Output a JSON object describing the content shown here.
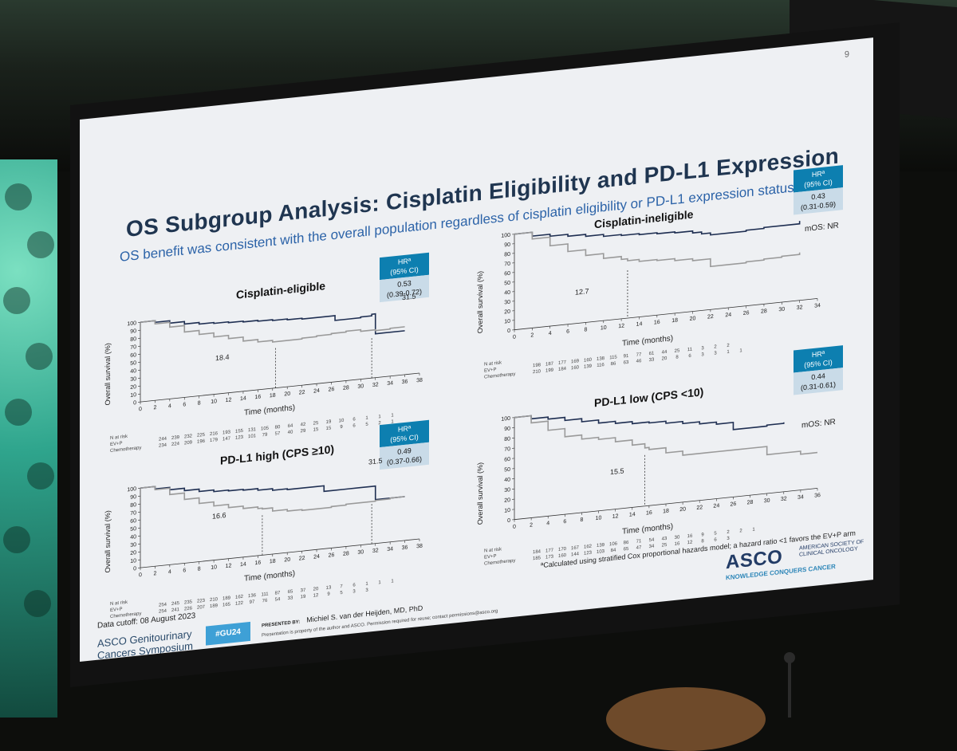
{
  "slide": {
    "number": "9",
    "title": "OS Subgroup Analysis: Cisplatin Eligibility and PD-L1 Expression",
    "subtitle": "OS benefit was consistent with the overall population regardless of cisplatin eligibility or PD-L1 expression status",
    "data_cutoff": "Data cutoff: 08 August 2023",
    "footnote": "ªCalculated using stratified Cox proportional hazards model; a hazard ratio <1 favors the EV+P arm"
  },
  "footer": {
    "symposium_line1": "ASCO Genitourinary",
    "symposium_line2": "Cancers Symposium",
    "hashtag": "#GU24",
    "presented_by_label": "PRESENTED BY:",
    "presenter": "Michiel S. van der Heijden, MD, PhD",
    "property_note": "Presentation is property of the author and ASCO. Permission required for reuse; contact permissions@asco.org",
    "asco_logo": "ASCO",
    "asco_org": "AMERICAN SOCIETY OF CLINICAL ONCOLOGY",
    "asco_tagline": "KNOWLEDGE CONQUERS CANCER"
  },
  "common": {
    "ylabel": "Overall survival (%)",
    "xlabel": "Time (months)",
    "hr_header_1": "HRª",
    "hr_header_2": "(95% CI)",
    "risk_label": "N at risk",
    "arm1": "EV+P",
    "arm2": "Chemotherapy"
  },
  "panels": [
    {
      "title": "Cisplatin-eligible",
      "hr": "0.53",
      "ci": "(0.39-0.72)",
      "annot_evp": "31.5",
      "annot_chemo": "18.4",
      "mos": "",
      "xticks": [
        "0",
        "2",
        "4",
        "6",
        "8",
        "10",
        "12",
        "14",
        "16",
        "18",
        "20",
        "22",
        "24",
        "26",
        "28",
        "30",
        "32",
        "34",
        "36",
        "38"
      ],
      "yticks": [
        "0",
        "10",
        "20",
        "30",
        "40",
        "50",
        "60",
        "70",
        "80",
        "90",
        "100"
      ],
      "risk_evp": [
        "244",
        "239",
        "232",
        "225",
        "216",
        "193",
        "155",
        "131",
        "105",
        "80",
        "64",
        "42",
        "25",
        "19",
        "10",
        "6",
        "1",
        "1",
        "1"
      ],
      "risk_chemo": [
        "234",
        "224",
        "209",
        "196",
        "179",
        "147",
        "123",
        "101",
        "79",
        "57",
        "40",
        "29",
        "15",
        "15",
        "9",
        "6",
        "5",
        "2",
        "1"
      ]
    },
    {
      "title": "Cisplatin-ineligible",
      "hr": "0.43",
      "ci": "(0.31-0.59)",
      "annot_evp": "",
      "annot_chemo": "12.7",
      "mos": "mOS: NR",
      "xticks": [
        "0",
        "2",
        "4",
        "6",
        "8",
        "10",
        "12",
        "14",
        "16",
        "18",
        "20",
        "22",
        "24",
        "26",
        "28",
        "30",
        "32",
        "34"
      ],
      "yticks": [
        "0",
        "10",
        "20",
        "30",
        "40",
        "50",
        "60",
        "70",
        "80",
        "90",
        "100"
      ],
      "risk_evp": [
        "198",
        "187",
        "177",
        "169",
        "160",
        "138",
        "115",
        "91",
        "77",
        "61",
        "44",
        "25",
        "11",
        "3",
        "2",
        "2"
      ],
      "risk_chemo": [
        "210",
        "199",
        "184",
        "160",
        "139",
        "116",
        "86",
        "63",
        "46",
        "33",
        "20",
        "8",
        "6",
        "3",
        "3",
        "1",
        "1"
      ]
    },
    {
      "title": "PD-L1 high (CPS ≥10)",
      "hr": "0.49",
      "ci": "(0.37-0.66)",
      "annot_evp": "31.5",
      "annot_chemo": "16.6",
      "mos": "",
      "xticks": [
        "0",
        "2",
        "4",
        "6",
        "8",
        "10",
        "12",
        "14",
        "16",
        "18",
        "20",
        "22",
        "24",
        "26",
        "28",
        "30",
        "32",
        "34",
        "36",
        "38"
      ],
      "yticks": [
        "0",
        "10",
        "20",
        "30",
        "40",
        "50",
        "60",
        "70",
        "80",
        "90",
        "100"
      ],
      "risk_evp": [
        "254",
        "245",
        "235",
        "223",
        "210",
        "189",
        "162",
        "136",
        "111",
        "87",
        "65",
        "37",
        "20",
        "13",
        "7",
        "6",
        "1",
        "1",
        "1"
      ],
      "risk_chemo": [
        "254",
        "241",
        "226",
        "207",
        "189",
        "165",
        "122",
        "97",
        "76",
        "54",
        "33",
        "19",
        "12",
        "9",
        "5",
        "3",
        "3"
      ]
    },
    {
      "title": "PD-L1 low (CPS <10)",
      "hr": "0.44",
      "ci": "(0.31-0.61)",
      "annot_evp": "",
      "annot_chemo": "15.5",
      "mos": "mOS: NR",
      "xticks": [
        "0",
        "2",
        "4",
        "6",
        "8",
        "10",
        "12",
        "14",
        "16",
        "18",
        "20",
        "22",
        "24",
        "26",
        "28",
        "30",
        "32",
        "34",
        "36"
      ],
      "yticks": [
        "0",
        "10",
        "20",
        "30",
        "40",
        "50",
        "60",
        "70",
        "80",
        "90",
        "100"
      ],
      "risk_evp": [
        "184",
        "177",
        "170",
        "167",
        "162",
        "139",
        "106",
        "86",
        "71",
        "54",
        "43",
        "30",
        "16",
        "9",
        "5",
        "2",
        "2",
        "1"
      ],
      "risk_chemo": [
        "185",
        "173",
        "160",
        "144",
        "123",
        "103",
        "84",
        "65",
        "47",
        "34",
        "25",
        "16",
        "12",
        "8",
        "6",
        "3"
      ]
    }
  ],
  "colors": {
    "evp_line": "#1f2f52",
    "chemo_line": "#9a9a9a",
    "hr_header_bg": "#0d7fb0",
    "hr_value_bg": "#c9dbe8",
    "title": "#1f3550",
    "subtitle": "#2c63a8"
  },
  "chart_data": [
    {
      "type": "line",
      "title": "Cisplatin-eligible",
      "xlabel": "Time (months)",
      "ylabel": "Overall survival (%)",
      "xlim": [
        0,
        38
      ],
      "ylim": [
        0,
        100
      ],
      "series": [
        {
          "name": "EV+P",
          "x": [
            0,
            2,
            4,
            6,
            8,
            10,
            12,
            14,
            16,
            18,
            20,
            22,
            24,
            26,
            26.5,
            28,
            30,
            31.5,
            32,
            33,
            36
          ],
          "values": [
            100,
            98,
            95,
            92,
            90,
            89,
            88,
            87,
            86,
            85,
            84,
            83,
            83,
            83,
            77,
            77,
            78,
            80,
            55,
            55,
            55
          ]
        },
        {
          "name": "Chemotherapy",
          "x": [
            0,
            2,
            4,
            6,
            8,
            10,
            12,
            14,
            16,
            18,
            20,
            22,
            24,
            26,
            28,
            30,
            32,
            34,
            36
          ],
          "values": [
            100,
            96,
            90,
            82,
            77,
            72,
            68,
            63,
            60,
            58,
            58,
            59,
            60,
            61,
            62,
            60,
            59,
            60,
            60
          ]
        }
      ]
    },
    {
      "type": "line",
      "title": "Cisplatin-ineligible",
      "xlabel": "Time (months)",
      "ylabel": "Overall survival (%)",
      "xlim": [
        0,
        34
      ],
      "ylim": [
        0,
        100
      ],
      "series": [
        {
          "name": "EV+P",
          "x": [
            0,
            2,
            4,
            6,
            8,
            10,
            12,
            14,
            16,
            18,
            20,
            21,
            22,
            24,
            26,
            28,
            30,
            32
          ],
          "values": [
            100,
            96,
            94,
            92,
            90,
            88,
            87,
            86,
            85,
            84,
            82,
            80,
            78,
            78,
            79,
            80,
            80,
            83
          ]
        },
        {
          "name": "Chemotherapy",
          "x": [
            0,
            2,
            4,
            6,
            8,
            10,
            12,
            12.7,
            14,
            16,
            18,
            20,
            22,
            24,
            26,
            28,
            30,
            32
          ],
          "values": [
            100,
            93,
            84,
            76,
            70,
            65,
            62,
            60,
            58,
            57,
            55,
            53,
            45,
            45,
            46,
            47,
            48,
            50
          ]
        }
      ]
    },
    {
      "type": "line",
      "title": "PD-L1 high (CPS ≥10)",
      "xlabel": "Time (months)",
      "ylabel": "Overall survival (%)",
      "xlim": [
        0,
        38
      ],
      "ylim": [
        0,
        100
      ],
      "series": [
        {
          "name": "EV+P",
          "x": [
            0,
            2,
            4,
            6,
            8,
            10,
            12,
            14,
            16,
            18,
            20,
            22,
            24,
            25,
            26,
            28,
            30,
            31.5,
            32,
            34,
            36
          ],
          "values": [
            100,
            97,
            94,
            91,
            88,
            86,
            85,
            84,
            82,
            80,
            79,
            79,
            79,
            72,
            72,
            72,
            72,
            72,
            55,
            55,
            55
          ]
        },
        {
          "name": "Chemotherapy",
          "x": [
            0,
            2,
            4,
            6,
            8,
            10,
            12,
            14,
            16,
            16.6,
            18,
            20,
            22,
            24,
            26,
            28,
            30,
            32,
            34,
            36
          ],
          "values": [
            100,
            96,
            88,
            80,
            73,
            68,
            64,
            61,
            59,
            58,
            54,
            52,
            51,
            51,
            52,
            53,
            53,
            54,
            55,
            55
          ]
        }
      ]
    },
    {
      "type": "line",
      "title": "PD-L1 low (CPS <10)",
      "xlabel": "Time (months)",
      "ylabel": "Overall survival (%)",
      "xlim": [
        0,
        36
      ],
      "ylim": [
        0,
        100
      ],
      "series": [
        {
          "name": "EV+P",
          "x": [
            0,
            2,
            4,
            6,
            8,
            10,
            12,
            14,
            16,
            18,
            20,
            22,
            24,
            26,
            28,
            30,
            32
          ],
          "values": [
            100,
            97,
            95,
            92,
            89,
            86,
            84,
            82,
            81,
            79,
            77,
            75,
            73,
            66,
            66,
            67,
            68
          ]
        },
        {
          "name": "Chemotherapy",
          "x": [
            0,
            2,
            4,
            6,
            8,
            10,
            12,
            14,
            15.5,
            16,
            18,
            20,
            22,
            24,
            26,
            28,
            30,
            32,
            34,
            36
          ],
          "values": [
            100,
            93,
            84,
            76,
            72,
            70,
            66,
            61,
            57,
            55,
            50,
            46,
            46,
            46,
            46,
            46,
            38,
            38,
            35,
            35
          ]
        }
      ]
    }
  ]
}
